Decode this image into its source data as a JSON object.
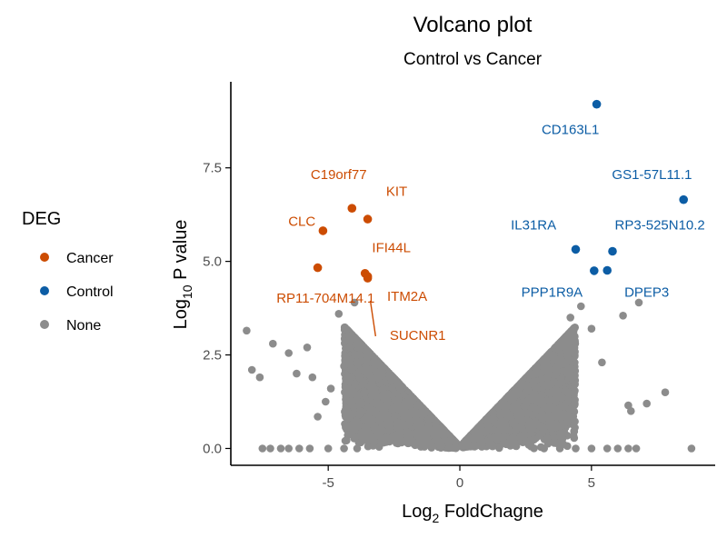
{
  "chart_data": {
    "type": "scatter",
    "title": "Volcano plot",
    "subtitle": "Control vs Cancer",
    "xlabel": {
      "base": "Log",
      "sub": "2",
      "rest": " FoldChagne"
    },
    "ylabel": {
      "base": "Log",
      "sub": "10",
      "rest": " P value"
    },
    "xlim": [
      -8.7,
      9.7
    ],
    "ylim": [
      -0.45,
      9.8
    ],
    "xticks": [
      -5,
      0,
      5
    ],
    "xtick_labels": [
      "-5",
      "0",
      "5"
    ],
    "yticks": [
      0,
      2.5,
      5,
      7.5
    ],
    "ytick_labels": [
      "0.0",
      "2.5",
      "5.0",
      "7.5"
    ],
    "grid": false,
    "legend": {
      "title": "DEG",
      "placement": "left",
      "entries": [
        {
          "name": "Cancer",
          "color": "#cc4c02"
        },
        {
          "name": "Control",
          "color": "#0c5da5"
        },
        {
          "name": "None",
          "color": "#8c8c8c"
        }
      ]
    },
    "colors": {
      "Cancer": "#cc4c02",
      "Control": "#0c5da5",
      "None": "#8c8c8c"
    },
    "series": [
      {
        "name": "Cancer",
        "points": [
          {
            "x": -4.1,
            "y": 6.42
          },
          {
            "x": -3.5,
            "y": 6.13
          },
          {
            "x": -5.2,
            "y": 5.82
          },
          {
            "x": -5.4,
            "y": 4.83
          },
          {
            "x": -3.6,
            "y": 4.68
          },
          {
            "x": -3.5,
            "y": 4.6
          },
          {
            "x": -3.5,
            "y": 4.55
          }
        ]
      },
      {
        "name": "Control",
        "points": [
          {
            "x": 5.2,
            "y": 9.2
          },
          {
            "x": 8.5,
            "y": 6.65
          },
          {
            "x": 4.4,
            "y": 5.32
          },
          {
            "x": 5.8,
            "y": 5.27
          },
          {
            "x": 5.1,
            "y": 4.75
          },
          {
            "x": 5.6,
            "y": 4.76
          }
        ]
      },
      {
        "name": "None",
        "points": [
          {
            "x": -8.1,
            "y": 3.15
          },
          {
            "x": -7.9,
            "y": 2.1
          },
          {
            "x": -7.6,
            "y": 1.9
          },
          {
            "x": -7.1,
            "y": 2.8
          },
          {
            "x": -6.5,
            "y": 2.55
          },
          {
            "x": -6.2,
            "y": 2.0
          },
          {
            "x": -5.8,
            "y": 2.7
          },
          {
            "x": -5.6,
            "y": 1.9
          },
          {
            "x": -5.4,
            "y": 0.85
          },
          {
            "x": -5.1,
            "y": 1.25
          },
          {
            "x": -4.9,
            "y": 1.6
          },
          {
            "x": -4.6,
            "y": 3.6
          },
          {
            "x": -4.4,
            "y": 2.2
          },
          {
            "x": -4.2,
            "y": 3.0
          },
          {
            "x": -4.0,
            "y": 3.9
          },
          {
            "x": -3.8,
            "y": 2.5
          },
          {
            "x": 4.2,
            "y": 3.5
          },
          {
            "x": 4.6,
            "y": 3.8
          },
          {
            "x": 5.0,
            "y": 3.2
          },
          {
            "x": 5.4,
            "y": 2.3
          },
          {
            "x": 6.2,
            "y": 3.55
          },
          {
            "x": 6.8,
            "y": 3.9
          },
          {
            "x": 6.5,
            "y": 1.0
          },
          {
            "x": 6.4,
            "y": 1.15
          },
          {
            "x": 7.1,
            "y": 1.2
          },
          {
            "x": 7.8,
            "y": 1.5
          },
          {
            "x": 8.8,
            "y": 0.0
          },
          {
            "x": -7.5,
            "y": 0.0
          },
          {
            "x": -7.2,
            "y": 0.0
          },
          {
            "x": -6.8,
            "y": 0.0
          },
          {
            "x": -6.5,
            "y": 0.0
          },
          {
            "x": -6.1,
            "y": 0.0
          },
          {
            "x": -5.7,
            "y": 0.0
          },
          {
            "x": -5.0,
            "y": 0.0
          },
          {
            "x": -4.4,
            "y": 0.0
          },
          {
            "x": -3.9,
            "y": 0.0
          },
          {
            "x": 3.2,
            "y": 0.0
          },
          {
            "x": 3.8,
            "y": 0.0
          },
          {
            "x": 4.4,
            "y": 0.0
          },
          {
            "x": 5.0,
            "y": 0.0
          },
          {
            "x": 5.6,
            "y": 0.0
          },
          {
            "x": 6.0,
            "y": 0.0
          },
          {
            "x": 6.4,
            "y": 0.0
          },
          {
            "x": 6.7,
            "y": 0.0
          }
        ]
      }
    ],
    "annotations": [
      {
        "label": "C19orf77",
        "series": "Cancer",
        "x": -4.6,
        "y": 7.2
      },
      {
        "label": "KIT",
        "series": "Cancer",
        "x": -2.4,
        "y": 6.75
      },
      {
        "label": "CLC",
        "series": "Cancer",
        "x": -6.0,
        "y": 5.95
      },
      {
        "label": "IFI44L",
        "series": "Cancer",
        "x": -2.6,
        "y": 5.25
      },
      {
        "label": "RP11-704M14.1",
        "series": "Cancer",
        "x": -5.1,
        "y": 3.9
      },
      {
        "label": "ITM2A",
        "series": "Cancer",
        "x": -2.0,
        "y": 3.95
      },
      {
        "label": "SUCNR1",
        "series": "Cancer",
        "x": -1.6,
        "y": 2.9
      },
      {
        "label": "CD163L1",
        "series": "Control",
        "x": 4.2,
        "y": 8.4
      },
      {
        "label": "GS1-57L11.1",
        "series": "Control",
        "x": 7.3,
        "y": 7.2
      },
      {
        "label": "IL31RA",
        "series": "Control",
        "x": 2.8,
        "y": 5.85
      },
      {
        "label": "RP3-525N10.2",
        "series": "Control",
        "x": 7.6,
        "y": 5.85
      },
      {
        "label": "PPP1R9A",
        "series": "Control",
        "x": 3.5,
        "y": 4.05
      },
      {
        "label": "DPEP3",
        "series": "Control",
        "x": 7.1,
        "y": 4.05
      }
    ],
    "segments": [
      {
        "series": "Cancer",
        "x1": -3.4,
        "y1": 3.95,
        "x2": -3.2,
        "y2": 3.0
      }
    ]
  }
}
